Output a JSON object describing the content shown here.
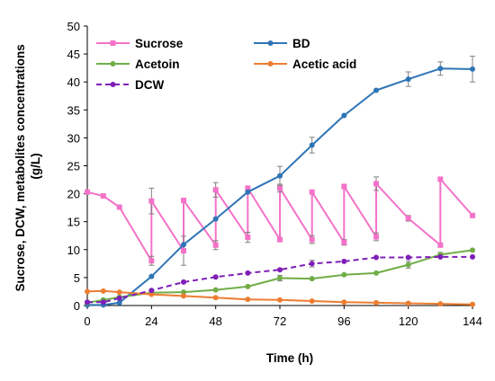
{
  "chart_data": {
    "type": "line",
    "xlabel": "Time (h)",
    "ylabel_lines": [
      "Sucrose, DCW, metabolites concentrations",
      "(g/L)"
    ],
    "xlim": [
      0,
      144
    ],
    "ylim": [
      0,
      50
    ],
    "xticks": [
      0,
      24,
      48,
      72,
      96,
      120,
      144
    ],
    "yticks": [
      0,
      5,
      10,
      15,
      20,
      25,
      30,
      35,
      40,
      45,
      50
    ],
    "grid": false,
    "legend_position": "top-left",
    "series": [
      {
        "name": "Sucrose",
        "color": "#f472c8",
        "marker": "square",
        "dashed": false,
        "points": [
          {
            "x": 0,
            "y": 20.3
          },
          {
            "x": 6,
            "y": 19.6
          },
          {
            "x": 12,
            "y": 17.6
          },
          {
            "x": 24,
            "y": 8.0,
            "err": 0.8
          },
          {
            "x": 24,
            "y": 18.7,
            "err": 2.3
          },
          {
            "x": 36,
            "y": 9.8,
            "err": 2.6
          },
          {
            "x": 36,
            "y": 18.8
          },
          {
            "x": 48,
            "y": 10.8,
            "err": 0.8
          },
          {
            "x": 48,
            "y": 20.7,
            "err": 1.3
          },
          {
            "x": 60,
            "y": 12.2,
            "err": 0.9
          },
          {
            "x": 60,
            "y": 21.0
          },
          {
            "x": 72,
            "y": 11.8
          },
          {
            "x": 72,
            "y": 21.0,
            "err": 0.7
          },
          {
            "x": 84,
            "y": 11.8,
            "err": 0.7
          },
          {
            "x": 84,
            "y": 20.3
          },
          {
            "x": 96,
            "y": 11.3,
            "err": 0.5
          },
          {
            "x": 96,
            "y": 21.3,
            "err": 0.4
          },
          {
            "x": 108,
            "y": 12.3,
            "err": 0.7
          },
          {
            "x": 108,
            "y": 21.8,
            "err": 1.2
          },
          {
            "x": 120,
            "y": 15.6,
            "err": 0.5
          },
          {
            "x": 132,
            "y": 10.8
          },
          {
            "x": 132,
            "y": 22.6
          },
          {
            "x": 144,
            "y": 16.1
          }
        ]
      },
      {
        "name": "BD",
        "color": "#2e75b6",
        "marker": "circle",
        "dashed": false,
        "points": [
          {
            "x": 0,
            "y": 0.1
          },
          {
            "x": 6,
            "y": 0.1
          },
          {
            "x": 12,
            "y": 0.5
          },
          {
            "x": 24,
            "y": 5.2
          },
          {
            "x": 36,
            "y": 10.9
          },
          {
            "x": 48,
            "y": 15.5
          },
          {
            "x": 60,
            "y": 20.3
          },
          {
            "x": 72,
            "y": 23.2,
            "err": 1.7
          },
          {
            "x": 84,
            "y": 28.7,
            "err": 1.4
          },
          {
            "x": 96,
            "y": 34.0
          },
          {
            "x": 108,
            "y": 38.5
          },
          {
            "x": 120,
            "y": 40.5,
            "err": 1.3
          },
          {
            "x": 132,
            "y": 42.4,
            "err": 1.2
          },
          {
            "x": 144,
            "y": 42.3,
            "err": 2.3
          }
        ]
      },
      {
        "name": "Acetoin",
        "color": "#70ad47",
        "marker": "circle",
        "dashed": false,
        "points": [
          {
            "x": 0,
            "y": 0.5
          },
          {
            "x": 6,
            "y": 1.0
          },
          {
            "x": 12,
            "y": 1.5
          },
          {
            "x": 24,
            "y": 2.3
          },
          {
            "x": 36,
            "y": 2.4
          },
          {
            "x": 48,
            "y": 2.8
          },
          {
            "x": 60,
            "y": 3.4
          },
          {
            "x": 72,
            "y": 4.9,
            "err": 0.5
          },
          {
            "x": 84,
            "y": 4.8
          },
          {
            "x": 96,
            "y": 5.5
          },
          {
            "x": 108,
            "y": 5.8
          },
          {
            "x": 120,
            "y": 7.3,
            "err": 0.6
          },
          {
            "x": 132,
            "y": 9.1,
            "err": 0.4
          },
          {
            "x": 144,
            "y": 9.9
          }
        ]
      },
      {
        "name": "Acetic acid",
        "color": "#ed7d31",
        "marker": "circle",
        "dashed": false,
        "points": [
          {
            "x": 0,
            "y": 2.5
          },
          {
            "x": 6,
            "y": 2.6
          },
          {
            "x": 12,
            "y": 2.4
          },
          {
            "x": 24,
            "y": 2.0
          },
          {
            "x": 36,
            "y": 1.7
          },
          {
            "x": 48,
            "y": 1.4
          },
          {
            "x": 60,
            "y": 1.1
          },
          {
            "x": 72,
            "y": 1.0
          },
          {
            "x": 84,
            "y": 0.8
          },
          {
            "x": 96,
            "y": 0.6
          },
          {
            "x": 108,
            "y": 0.5
          },
          {
            "x": 120,
            "y": 0.4
          },
          {
            "x": 132,
            "y": 0.3
          },
          {
            "x": 144,
            "y": 0.2
          }
        ]
      },
      {
        "name": "DCW",
        "color": "#7f1fb8",
        "marker": "circle",
        "dashed": true,
        "points": [
          {
            "x": 0,
            "y": 0.6
          },
          {
            "x": 6,
            "y": 0.6
          },
          {
            "x": 12,
            "y": 1.3
          },
          {
            "x": 24,
            "y": 2.7
          },
          {
            "x": 36,
            "y": 4.2
          },
          {
            "x": 48,
            "y": 5.1
          },
          {
            "x": 60,
            "y": 5.8
          },
          {
            "x": 72,
            "y": 6.4
          },
          {
            "x": 84,
            "y": 7.5,
            "err": 0.6
          },
          {
            "x": 96,
            "y": 7.9
          },
          {
            "x": 108,
            "y": 8.6
          },
          {
            "x": 120,
            "y": 8.6
          },
          {
            "x": 132,
            "y": 8.7
          },
          {
            "x": 144,
            "y": 8.7
          }
        ]
      }
    ]
  }
}
